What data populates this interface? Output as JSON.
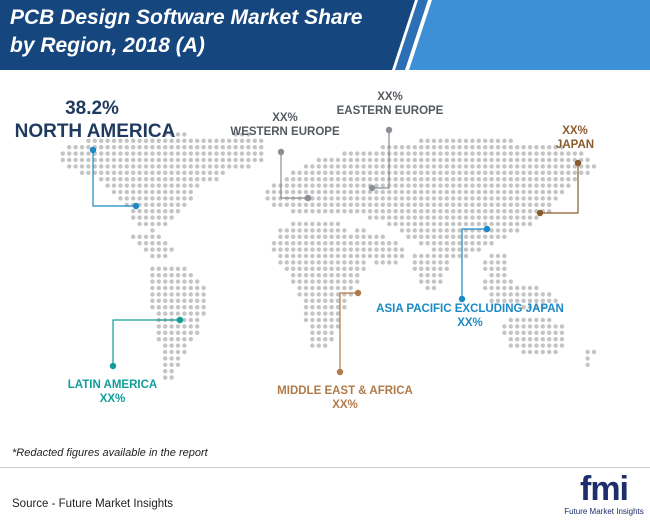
{
  "header": {
    "title": "PCB Design Software Market Share by Region, 2018 (A)"
  },
  "chart_data": {
    "type": "map",
    "title": "PCB Design Software Market Share by Region, 2018 (A)",
    "regions": [
      {
        "name": "NORTH AMERICA",
        "value": "38.2%",
        "color": "#1a8ac6"
      },
      {
        "name": "WESTERN EUROPE",
        "value": "XX%",
        "color": "#8a8f96"
      },
      {
        "name": "EASTERN EUROPE",
        "value": "XX%",
        "color": "#8a8f96"
      },
      {
        "name": "JAPAN",
        "value": "XX%",
        "color": "#8b5a2b"
      },
      {
        "name": "ASIA PACIFIC EXCLUDING JAPAN",
        "value": "XX%",
        "color": "#1a8ac6"
      },
      {
        "name": "LATIN AMERICA",
        "value": "XX%",
        "color": "#0f9d9a"
      },
      {
        "name": "MIDDLE EAST & AFRICA",
        "value": "XX%",
        "color": "#b07a4a"
      }
    ]
  },
  "footer": {
    "note": "*Redacted figures available in the report",
    "source": "Source - Future Market Insights"
  },
  "logo": {
    "mark": "fmi",
    "text": "Future Market Insights"
  },
  "colors": {
    "header": "#16467e",
    "header_stripe": "#3d8fd6",
    "dots": "#c4c4c4"
  }
}
